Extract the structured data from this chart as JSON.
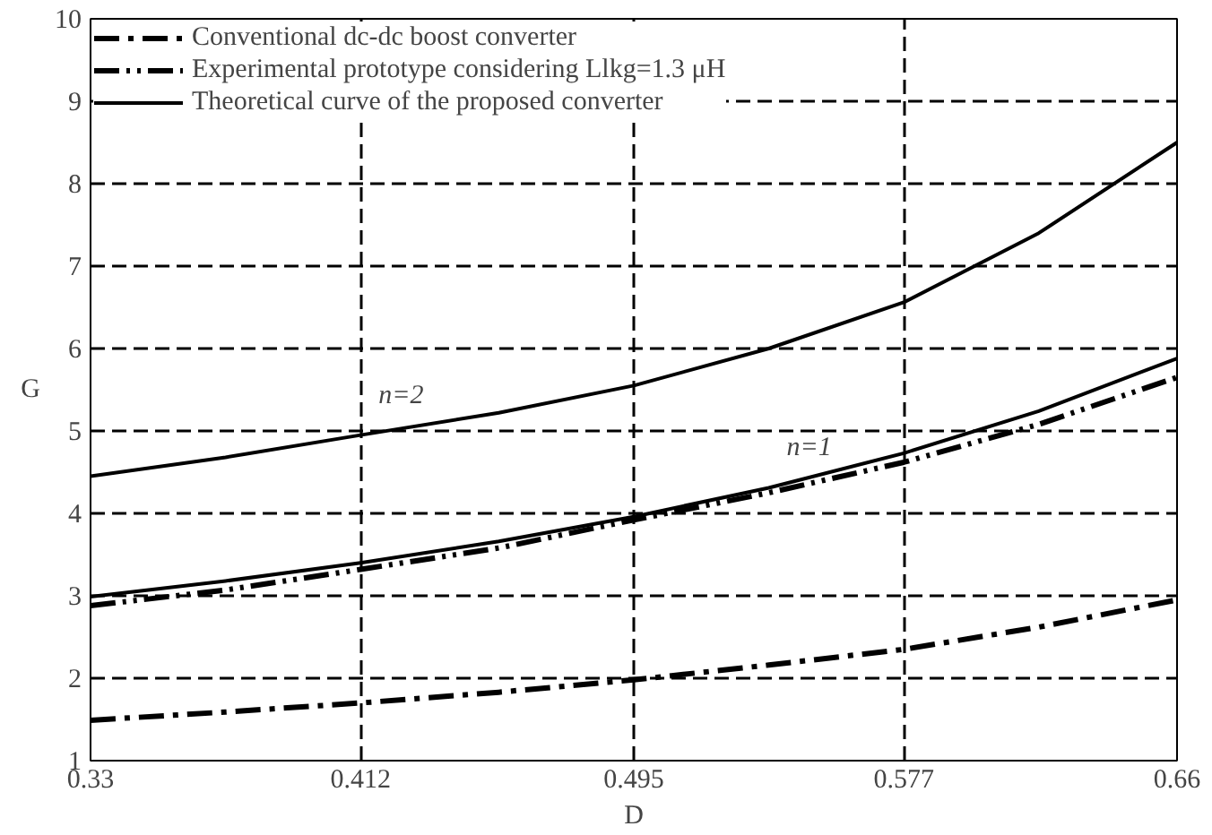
{
  "chart_data": {
    "type": "line",
    "xlabel": "D",
    "ylabel": "G",
    "x": [
      0.33,
      0.371,
      0.412,
      0.454,
      0.495,
      0.536,
      0.577,
      0.618,
      0.66
    ],
    "series": [
      {
        "name": "Conventional dc-dc boost converter",
        "color": "#000000",
        "line_style": "dashdot",
        "values": [
          1.49,
          1.59,
          1.7,
          1.83,
          1.98,
          2.16,
          2.35,
          2.62,
          2.95
        ]
      },
      {
        "name": "Experimental prototype considering Llkg=1.3 μH",
        "color": "#000000",
        "line_style": "dashdotdot",
        "values": [
          2.88,
          3.07,
          3.32,
          3.58,
          3.92,
          4.25,
          4.62,
          5.08,
          5.65
        ]
      },
      {
        "name": "Theoretical curve of the proposed converter",
        "color": "#000000",
        "line_style": "solid",
        "values": [
          2.99,
          3.18,
          3.4,
          3.66,
          3.96,
          4.31,
          4.73,
          5.24,
          5.88
        ]
      },
      {
        "color": "#000000",
        "line_style": "solid",
        "values": [
          4.45,
          4.68,
          4.95,
          5.22,
          5.55,
          6.0,
          6.56,
          7.4,
          8.5
        ]
      }
    ],
    "annotations": [
      {
        "text": "n=2",
        "x": 0.412,
        "y": 4.95
      },
      {
        "text": "n=1",
        "x": 0.536,
        "y": 4.31
      }
    ],
    "xlim": [
      0.33,
      0.66
    ],
    "xticks": [
      0.33,
      0.412,
      0.495,
      0.577,
      0.66
    ],
    "ylim": [
      1,
      10
    ],
    "yticks": [
      1,
      2,
      3,
      4,
      5,
      6,
      7,
      8,
      9,
      10
    ],
    "grid": true,
    "legend": "top left",
    "marker": "none"
  }
}
